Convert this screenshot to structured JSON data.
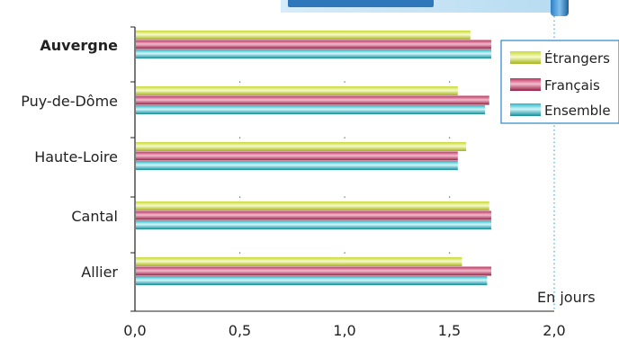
{
  "chart_data": {
    "type": "bar",
    "orientation": "horizontal",
    "categories": [
      "Auvergne",
      "Puy-de-Dôme",
      "Haute-Loire",
      "Cantal",
      "Allier"
    ],
    "emphasized_category": "Auvergne",
    "series": [
      {
        "name": "Étrangers",
        "color": "#c8d835",
        "values": [
          1.6,
          1.54,
          1.58,
          1.69,
          1.56
        ]
      },
      {
        "name": "Français",
        "color": "#c0305e",
        "values": [
          1.7,
          1.69,
          1.54,
          1.7,
          1.7
        ]
      },
      {
        "name": "Ensemble",
        "color": "#27b8c8",
        "values": [
          1.7,
          1.67,
          1.54,
          1.7,
          1.68
        ]
      }
    ],
    "xlim": [
      0,
      2
    ],
    "xticks": [
      "0,0",
      "0,5",
      "1,0",
      "1,5",
      "2,0"
    ],
    "unit_label": "En jours",
    "legend_position": "top-right",
    "grid": "dotted vertical at 2,0"
  }
}
